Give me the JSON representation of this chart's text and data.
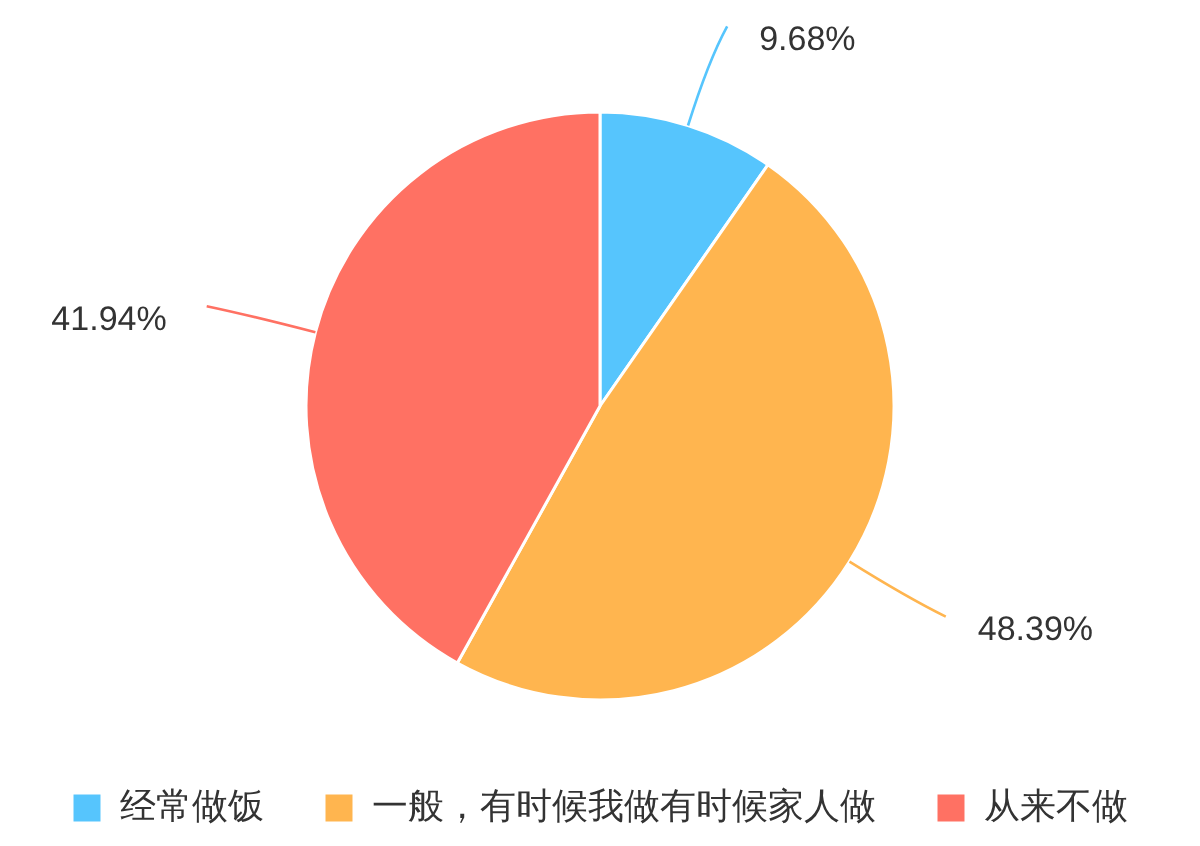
{
  "chart_data": {
    "type": "pie",
    "categories": [
      "经常做饭",
      "一般，有时候我做有时候家人做",
      "从来不做"
    ],
    "values": [
      9.68,
      48.39,
      41.94
    ],
    "colors": [
      "#56c5fd",
      "#ffb54f",
      "#ff7163"
    ],
    "value_labels": [
      "9.68%",
      "48.39%",
      "41.94%"
    ],
    "legend": "bottom"
  }
}
